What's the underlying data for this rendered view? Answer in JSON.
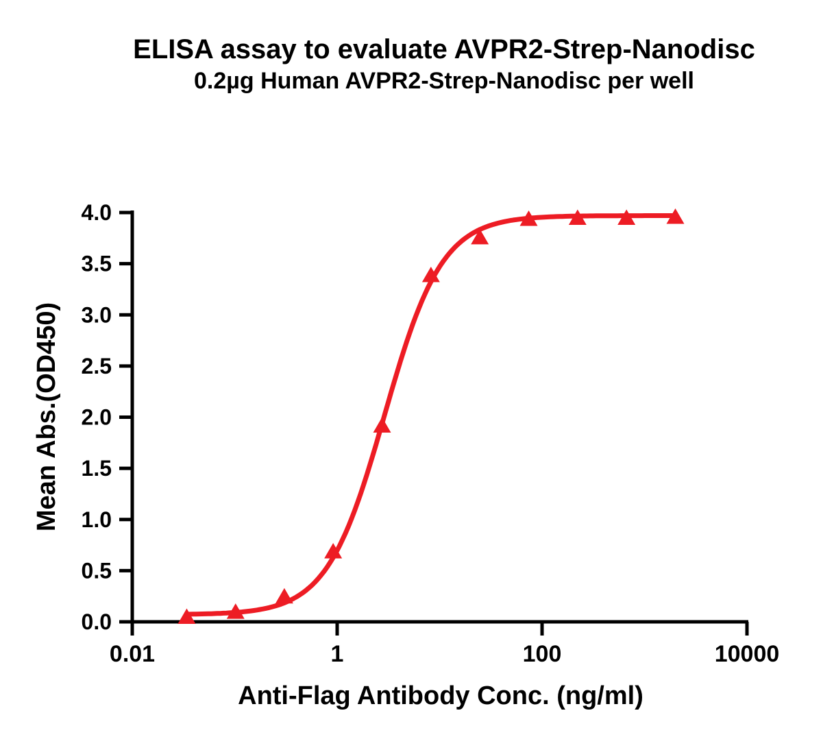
{
  "title": "ELISA assay to evaluate AVPR2-Strep-Nanodisc",
  "subtitle": "0.2µg Human AVPR2-Strep-Nanodisc per well",
  "chart_data": {
    "type": "line",
    "title": "ELISA assay to evaluate AVPR2-Strep-Nanodisc",
    "subtitle": "0.2µg Human AVPR2-Strep-Nanodisc per well",
    "xlabel": "Anti-Flag Antibody Conc. (ng/ml)",
    "ylabel": "Mean Abs.(OD450)",
    "x_scale": "log10",
    "xlim": [
      0.01,
      10000
    ],
    "ylim": [
      0.0,
      4.0
    ],
    "x_tick_values": [
      0.01,
      1,
      100,
      10000
    ],
    "x_tick_labels": [
      "0.01",
      "1",
      "100",
      "10000"
    ],
    "y_tick_values": [
      0.0,
      0.5,
      1.0,
      1.5,
      2.0,
      2.5,
      3.0,
      3.5,
      4.0
    ],
    "y_tick_labels": [
      "0.0",
      "0.5",
      "1.0",
      "1.5",
      "2.0",
      "2.5",
      "3.0",
      "3.5",
      "4.0"
    ],
    "grid": false,
    "legend_position": "none",
    "series": [
      {
        "name": "Human AVPR2-Strep-Nanodisc",
        "marker": "triangle-up-icon",
        "color": "#ED1C24",
        "x": [
          0.034,
          0.102,
          0.305,
          0.914,
          2.743,
          8.23,
          24.69,
          74.07,
          222.2,
          666.7,
          2000
        ],
        "y": [
          0.05,
          0.1,
          0.25,
          0.69,
          1.92,
          3.39,
          3.76,
          3.94,
          3.95,
          3.95,
          3.96
        ]
      }
    ],
    "fit_4pl": {
      "bottom": 0.07,
      "top": 3.97,
      "ec50": 2.9,
      "hill": 1.55
    }
  },
  "colors": {
    "accent": "#ED1C24",
    "text": "#000000",
    "background": "#FFFFFF",
    "axis": "#000000"
  }
}
